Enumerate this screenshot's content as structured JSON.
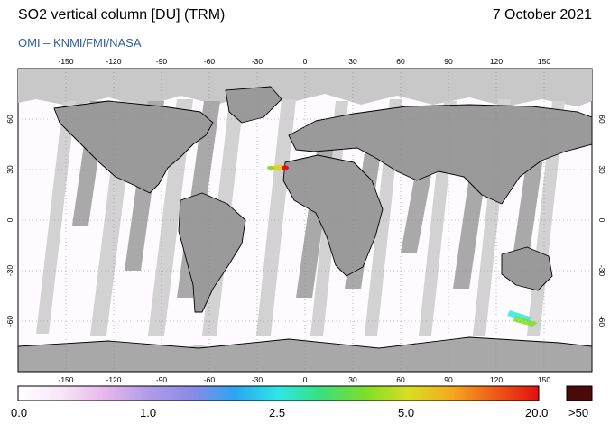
{
  "header": {
    "title": "SO2 vertical column [DU] (TRM)",
    "date": "7 October 2021",
    "credit": "OMI  –  KNMI/FMI/NASA"
  },
  "map": {
    "projection": "equirectangular",
    "lon_ticks": [
      "-150",
      "-120",
      "-90",
      "-60",
      "-30",
      "0",
      "30",
      "60",
      "90",
      "120",
      "150"
    ],
    "lat_ticks": [
      "60",
      "30",
      "0",
      "-30",
      "-60"
    ],
    "colors": {
      "no_data": "#c8c8c8",
      "swath_gap": "#d2d2d2",
      "orbit_stripe": "#a8a8a8",
      "coastline": "#000000"
    },
    "so2_features": [
      {
        "name": "canary-islands-plume",
        "lon": -17.8,
        "lat": 28.6,
        "value_class": "high"
      },
      {
        "name": "southern-ocean-signal",
        "lon": 137,
        "lat": -62,
        "value_class": "low"
      }
    ]
  },
  "colorbar": {
    "labels": [
      "0.0",
      "1.0",
      "2.5",
      "5.0",
      "20.0"
    ],
    "overflow_label": ">50",
    "overflow_color": "#4a0a0a",
    "stops": [
      "#ffffff",
      "#f6e6f6",
      "#e8b6ec",
      "#b09ce6",
      "#8a8ae8",
      "#2aa6f0",
      "#2ee6e6",
      "#3ae07a",
      "#7ede2a",
      "#d8de22",
      "#f5a81e",
      "#ef5a18",
      "#e01010"
    ]
  }
}
